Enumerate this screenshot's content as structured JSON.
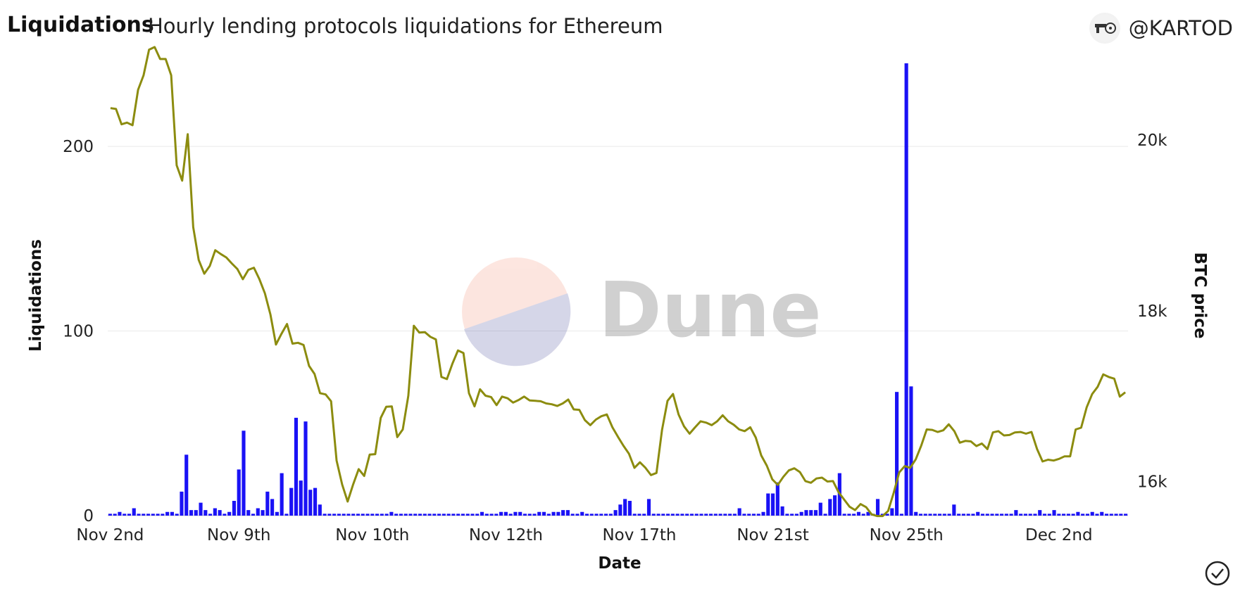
{
  "header": {
    "title": "Liquidations",
    "subtitle": "Hourly lending protocols liquidations for Ethereum",
    "username": "@KARTOD",
    "avatar_icon": "avatar-icon"
  },
  "watermark": {
    "text": "Dune"
  },
  "chart_data": {
    "type": "bar+line",
    "xlabel": "Date",
    "ylabel_left": "Liquidations",
    "ylabel_right": "BTC price",
    "x_ticks": [
      "Nov 2nd",
      "Nov 9th",
      "Nov 10th",
      "Nov 12th",
      "Nov 17th",
      "Nov 21st",
      "Nov 25th",
      "Dec 2nd"
    ],
    "y_left_ticks": [
      "0",
      "100",
      "200"
    ],
    "y_right_ticks": [
      "16k",
      "18k",
      "20k"
    ],
    "y_left_range": [
      0,
      245
    ],
    "y_right_range": [
      15600,
      20900
    ],
    "colors": {
      "bars": "#1a12f5",
      "line": "#8c8c0f",
      "grid": "#e9e9e9"
    },
    "series": [
      {
        "name": "Liquidations",
        "kind": "bar",
        "values": [
          1,
          1,
          2,
          1,
          1,
          4,
          1,
          1,
          1,
          1,
          1,
          1,
          2,
          2,
          1,
          13,
          33,
          3,
          3,
          7,
          3,
          1,
          4,
          3,
          1,
          2,
          8,
          25,
          46,
          3,
          1,
          4,
          3,
          13,
          9,
          2,
          23,
          1,
          15,
          53,
          19,
          51,
          14,
          15,
          6,
          1,
          1,
          1,
          1,
          1,
          1,
          1,
          1,
          1,
          1,
          1,
          1,
          1,
          1,
          2,
          1,
          1,
          1,
          1,
          1,
          1,
          1,
          1,
          1,
          1,
          1,
          1,
          1,
          1,
          1,
          1,
          1,
          1,
          2,
          1,
          1,
          1,
          2,
          2,
          1,
          2,
          2,
          1,
          1,
          1,
          2,
          2,
          1,
          2,
          2,
          3,
          3,
          1,
          1,
          2,
          1,
          1,
          1,
          1,
          1,
          1,
          3,
          6,
          9,
          8,
          1,
          1,
          1,
          9,
          1,
          1,
          1,
          1,
          1,
          1,
          1,
          1,
          1,
          1,
          1,
          1,
          1,
          1,
          1,
          1,
          1,
          1,
          4,
          1,
          1,
          1,
          1,
          2,
          12,
          12,
          18,
          5,
          1,
          1,
          1,
          2,
          3,
          3,
          3,
          7,
          1,
          9,
          11,
          23,
          1,
          1,
          1,
          2,
          1,
          2,
          1,
          9,
          1,
          1,
          4,
          67,
          1,
          245,
          70,
          2,
          1,
          1,
          1,
          1,
          1,
          1,
          1,
          6,
          1,
          1,
          1,
          1,
          2,
          1,
          1,
          1,
          1,
          1,
          1,
          1,
          3,
          1,
          1,
          1,
          1,
          3,
          1,
          1,
          3,
          1,
          1,
          1,
          1,
          2,
          1,
          1,
          2,
          1,
          2,
          1,
          1,
          1,
          1,
          1
        ]
      },
      {
        "name": "BTC price",
        "kind": "line",
        "values": [
          20375,
          20365,
          20185,
          20205,
          20175,
          20590,
          20760,
          21060,
          21090,
          20950,
          20950,
          20760,
          19705,
          19525,
          20070,
          18980,
          18595,
          18435,
          18525,
          18710,
          18665,
          18625,
          18555,
          18490,
          18370,
          18480,
          18505,
          18370,
          18205,
          17955,
          17605,
          17730,
          17845,
          17615,
          17625,
          17600,
          17355,
          17260,
          17035,
          17020,
          16940,
          16245,
          15965,
          15765,
          15965,
          16145,
          16065,
          16315,
          16320,
          16745,
          16875,
          16880,
          16520,
          16610,
          17005,
          17825,
          17745,
          17750,
          17695,
          17665,
          17225,
          17200,
          17380,
          17535,
          17505,
          17035,
          16880,
          17080,
          17005,
          16990,
          16895,
          16995,
          16975,
          16925,
          16955,
          16995,
          16950,
          16945,
          16940,
          16915,
          16905,
          16885,
          16915,
          16960,
          16845,
          16840,
          16720,
          16660,
          16725,
          16765,
          16785,
          16635,
          16525,
          16420,
          16325,
          16160,
          16225,
          16160,
          16075,
          16100,
          16605,
          16945,
          17025,
          16785,
          16645,
          16560,
          16635,
          16705,
          16690,
          16660,
          16705,
          16775,
          16705,
          16665,
          16610,
          16590,
          16635,
          16515,
          16305,
          16185,
          16025,
          15960,
          16055,
          16130,
          16155,
          16110,
          16005,
          15985,
          16035,
          16045,
          16000,
          16005,
          15875,
          15790,
          15705,
          15665,
          15735,
          15700,
          15615,
          15595,
          15595,
          15655,
          15865,
          16105,
          16180,
          16160,
          16260,
          16420,
          16610,
          16605,
          16580,
          16600,
          16670,
          16590,
          16455,
          16475,
          16470,
          16415,
          16445,
          16380,
          16575,
          16590,
          16540,
          16545,
          16575,
          16580,
          16560,
          16580,
          16380,
          16235,
          16255,
          16245,
          16265,
          16295,
          16295,
          16610,
          16630,
          16870,
          17025,
          17110,
          17255,
          17225,
          17205,
          16995,
          17045
        ]
      }
    ]
  },
  "footer": {
    "check_icon": "check-circle-icon"
  }
}
